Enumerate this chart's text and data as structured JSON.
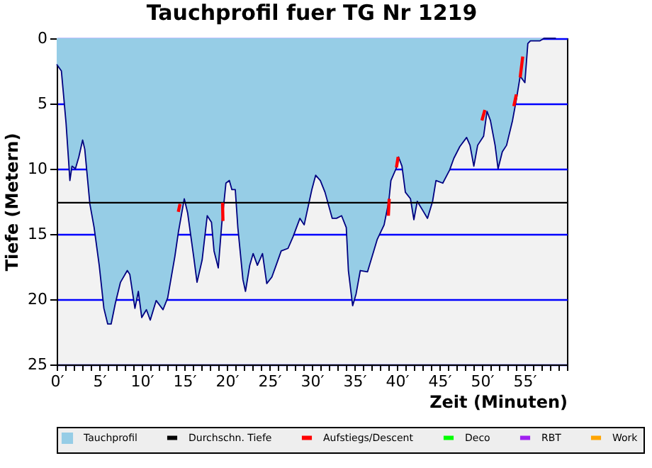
{
  "chart_data": {
    "type": "area",
    "title": "Tauchprofil fuer TG Nr 1219",
    "xlabel": "Zeit (Minuten)",
    "ylabel": "Tiefe (Metern)",
    "xlim": [
      0,
      60
    ],
    "ylim": [
      25,
      0
    ],
    "xticks": [
      {
        "value": 0,
        "label": "0′"
      },
      {
        "value": 1,
        "label": null
      },
      {
        "value": 2,
        "label": null
      },
      {
        "value": 3,
        "label": null
      },
      {
        "value": 4,
        "label": null
      },
      {
        "value": 5,
        "label": "5′"
      },
      {
        "value": 6,
        "label": null
      },
      {
        "value": 7,
        "label": null
      },
      {
        "value": 8,
        "label": null
      },
      {
        "value": 9,
        "label": null
      },
      {
        "value": 10,
        "label": "10′"
      },
      {
        "value": 11,
        "label": null
      },
      {
        "value": 12,
        "label": null
      },
      {
        "value": 13,
        "label": null
      },
      {
        "value": 14,
        "label": null
      },
      {
        "value": 15,
        "label": "15′"
      },
      {
        "value": 16,
        "label": null
      },
      {
        "value": 17,
        "label": null
      },
      {
        "value": 18,
        "label": null
      },
      {
        "value": 19,
        "label": null
      },
      {
        "value": 20,
        "label": "20′"
      },
      {
        "value": 21,
        "label": null
      },
      {
        "value": 22,
        "label": null
      },
      {
        "value": 23,
        "label": null
      },
      {
        "value": 24,
        "label": null
      },
      {
        "value": 25,
        "label": "25′"
      },
      {
        "value": 26,
        "label": null
      },
      {
        "value": 27,
        "label": null
      },
      {
        "value": 28,
        "label": null
      },
      {
        "value": 29,
        "label": null
      },
      {
        "value": 30,
        "label": "30′"
      },
      {
        "value": 31,
        "label": null
      },
      {
        "value": 32,
        "label": null
      },
      {
        "value": 33,
        "label": null
      },
      {
        "value": 34,
        "label": null
      },
      {
        "value": 35,
        "label": "35′"
      },
      {
        "value": 36,
        "label": null
      },
      {
        "value": 37,
        "label": null
      },
      {
        "value": 38,
        "label": null
      },
      {
        "value": 39,
        "label": null
      },
      {
        "value": 40,
        "label": "40′"
      },
      {
        "value": 41,
        "label": null
      },
      {
        "value": 42,
        "label": null
      },
      {
        "value": 43,
        "label": null
      },
      {
        "value": 44,
        "label": null
      },
      {
        "value": 45,
        "label": "45′"
      },
      {
        "value": 46,
        "label": null
      },
      {
        "value": 47,
        "label": null
      },
      {
        "value": 48,
        "label": null
      },
      {
        "value": 49,
        "label": null
      },
      {
        "value": 50,
        "label": "50′"
      },
      {
        "value": 51,
        "label": null
      },
      {
        "value": 52,
        "label": null
      },
      {
        "value": 53,
        "label": null
      },
      {
        "value": 54,
        "label": null
      },
      {
        "value": 55,
        "label": "55′"
      },
      {
        "value": 56,
        "label": null
      },
      {
        "value": 57,
        "label": null
      },
      {
        "value": 58,
        "label": null
      },
      {
        "value": 59,
        "label": null
      },
      {
        "value": 60,
        "label": null
      }
    ],
    "yticks": [
      0,
      5,
      10,
      15,
      20,
      25
    ],
    "grid": "y",
    "legend": "bottom",
    "marker": "none",
    "line_style": "solid",
    "series": [
      {
        "name": "Tauchprofil",
        "color": "#96cde6",
        "x": [
          0,
          0.55,
          0.8,
          1.1,
          1.4,
          1.55,
          1.8,
          2.2,
          2.6,
          3.05,
          3.3,
          3.9,
          4.4,
          5.0,
          5.55,
          6.0,
          6.4,
          6.9,
          7.5,
          8.3,
          8.6,
          9.2,
          9.6,
          10.0,
          10.55,
          11.0,
          11.7,
          12.5,
          13.05,
          13.9,
          14.3,
          15.0,
          15.4,
          16.1,
          16.5,
          17.1,
          17.7,
          18.2,
          18.5,
          19.0,
          19.4,
          19.9,
          20.3,
          20.6,
          21.0,
          21.3,
          21.9,
          22.2,
          22.7,
          23.1,
          23.6,
          24.2,
          24.7,
          25.3,
          25.8,
          26.4,
          27.2,
          27.8,
          28.6,
          29.1,
          30.0,
          30.45,
          31.0,
          31.55,
          32.4,
          32.9,
          33.5,
          34.05,
          34.3,
          34.8,
          35.2,
          35.7,
          36.55,
          37.1,
          37.7,
          38.5,
          39.05,
          39.3,
          39.9,
          40.2,
          40.6,
          41.0,
          41.6,
          42.0,
          42.4,
          43.05,
          43.6,
          44.2,
          44.6,
          45.4,
          46.2,
          46.7,
          47.4,
          48.2,
          48.6,
          49.05,
          49.5,
          50.2,
          50.6,
          51.0,
          51.55,
          51.9,
          52.4,
          52.9,
          53.6,
          54.05,
          54.5,
          55.05,
          55.4,
          55.7,
          56.8,
          57.3,
          58.7
        ],
        "values": [
          2.0,
          2.5,
          4.3,
          6.5,
          9.4,
          10.9,
          9.8,
          10.0,
          9.1,
          7.8,
          8.5,
          12.7,
          14.5,
          17.4,
          20.7,
          21.9,
          21.9,
          20.3,
          18.7,
          17.8,
          18.1,
          20.7,
          19.4,
          21.4,
          20.8,
          21.6,
          20.1,
          20.8,
          19.9,
          16.7,
          14.9,
          12.3,
          13.4,
          16.7,
          18.7,
          17.0,
          13.6,
          14.1,
          16.3,
          17.6,
          14.3,
          11.1,
          10.9,
          11.6,
          11.6,
          14.5,
          18.5,
          19.4,
          17.4,
          16.5,
          17.4,
          16.5,
          18.8,
          18.3,
          17.4,
          16.3,
          16.1,
          15.2,
          13.8,
          14.3,
          11.6,
          10.5,
          10.9,
          11.8,
          13.8,
          13.8,
          13.6,
          14.5,
          17.8,
          20.5,
          19.6,
          17.8,
          17.9,
          16.7,
          15.4,
          14.3,
          12.5,
          10.9,
          10.0,
          9.1,
          9.8,
          11.8,
          12.3,
          13.9,
          12.5,
          13.2,
          13.8,
          12.5,
          10.9,
          11.1,
          10.1,
          9.2,
          8.3,
          7.6,
          8.2,
          9.8,
          8.2,
          7.5,
          5.6,
          6.3,
          8.2,
          10.0,
          8.7,
          8.2,
          6.3,
          4.7,
          2.9,
          3.4,
          0.4,
          0.2,
          0.2,
          0,
          0
        ]
      },
      {
        "name": "Durchschn. Tiefe",
        "type": "line",
        "color": "#000000",
        "x": [
          0,
          60
        ],
        "values": [
          12.6,
          12.6
        ]
      },
      {
        "name": "Aufstiegs/Descent",
        "type": "line",
        "color": "#ff0000",
        "x": [
          14.3,
          14.5,
          15,
          19.5,
          19.55,
          20,
          39.0,
          39.1,
          39.5,
          39.95,
          40.15,
          45,
          50.0,
          50.35,
          52,
          53.75,
          54.05,
          54.2,
          54.5,
          54.8
        ],
        "values": [
          13.3,
          12.7,
          null,
          12.6,
          14.0,
          null,
          13.6,
          12.3,
          null,
          9.9,
          9.1,
          null,
          6.3,
          5.5,
          null,
          5.2,
          4.3,
          null,
          3.0,
          1.4
        ]
      },
      {
        "name": "Deco",
        "type": "line",
        "color": "#00ff00"
      },
      {
        "name": "RBT",
        "type": "line",
        "color": "#a020f0"
      },
      {
        "name": "Work",
        "type": "line",
        "color": "#ffa500"
      }
    ]
  }
}
